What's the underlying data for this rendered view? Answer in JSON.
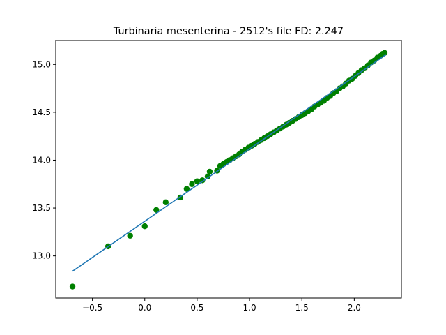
{
  "chart_data": {
    "type": "scatter",
    "title": "Turbinaria mesenterina - 2512's file FD: 2.247",
    "xlabel": "",
    "ylabel": "",
    "xlim": [
      -0.85,
      2.45
    ],
    "ylim": [
      12.56,
      15.25
    ],
    "x_ticks": [
      -0.5,
      0.0,
      0.5,
      1.0,
      1.5,
      2.0
    ],
    "x_tick_labels": [
      "−0.5",
      "0.0",
      "0.5",
      "1.0",
      "1.5",
      "2.0"
    ],
    "y_ticks": [
      13.0,
      13.5,
      14.0,
      14.5,
      15.0
    ],
    "y_tick_labels": [
      "13.0",
      "13.5",
      "14.0",
      "14.5",
      "15.0"
    ],
    "grid": false,
    "series": [
      {
        "kind": "scatter",
        "color": "#008000",
        "points": [
          [
            -0.69,
            12.68
          ],
          [
            -0.35,
            13.1
          ],
          [
            -0.14,
            13.21
          ],
          [
            0.0,
            13.31
          ],
          [
            0.11,
            13.48
          ],
          [
            0.2,
            13.56
          ],
          [
            0.34,
            13.61
          ],
          [
            0.4,
            13.7
          ],
          [
            0.45,
            13.75
          ],
          [
            0.5,
            13.78
          ],
          [
            0.55,
            13.79
          ],
          [
            0.6,
            13.83
          ],
          [
            0.62,
            13.88
          ],
          [
            0.69,
            13.89
          ],
          [
            0.72,
            13.94
          ],
          [
            0.75,
            13.96
          ],
          [
            0.78,
            13.98
          ],
          [
            0.81,
            14.0
          ],
          [
            0.84,
            14.02
          ],
          [
            0.87,
            14.04
          ],
          [
            0.9,
            14.06
          ],
          [
            0.93,
            14.09
          ],
          [
            0.96,
            14.11
          ],
          [
            0.99,
            14.13
          ],
          [
            1.02,
            14.15
          ],
          [
            1.05,
            14.17
          ],
          [
            1.08,
            14.19
          ],
          [
            1.11,
            14.21
          ],
          [
            1.14,
            14.23
          ],
          [
            1.17,
            14.25
          ],
          [
            1.2,
            14.27
          ],
          [
            1.23,
            14.29
          ],
          [
            1.26,
            14.31
          ],
          [
            1.29,
            14.33
          ],
          [
            1.32,
            14.35
          ],
          [
            1.35,
            14.37
          ],
          [
            1.38,
            14.39
          ],
          [
            1.41,
            14.41
          ],
          [
            1.44,
            14.43
          ],
          [
            1.47,
            14.45
          ],
          [
            1.5,
            14.47
          ],
          [
            1.53,
            14.49
          ],
          [
            1.56,
            14.51
          ],
          [
            1.59,
            14.53
          ],
          [
            1.62,
            14.56
          ],
          [
            1.65,
            14.58
          ],
          [
            1.68,
            14.6
          ],
          [
            1.71,
            14.62
          ],
          [
            1.74,
            14.65
          ],
          [
            1.77,
            14.67
          ],
          [
            1.8,
            14.7
          ],
          [
            1.83,
            14.72
          ],
          [
            1.86,
            14.75
          ],
          [
            1.89,
            14.77
          ],
          [
            1.92,
            14.8
          ],
          [
            1.95,
            14.83
          ],
          [
            1.98,
            14.85
          ],
          [
            2.01,
            14.88
          ],
          [
            2.04,
            14.91
          ],
          [
            2.07,
            14.94
          ],
          [
            2.1,
            14.96
          ],
          [
            2.13,
            14.99
          ],
          [
            2.16,
            15.02
          ],
          [
            2.19,
            15.04
          ],
          [
            2.22,
            15.07
          ],
          [
            2.25,
            15.09
          ],
          [
            2.27,
            15.11
          ],
          [
            2.29,
            15.12
          ]
        ]
      },
      {
        "kind": "line",
        "color": "#1f77b4",
        "points": [
          [
            -0.69,
            12.84
          ],
          [
            2.3,
            15.1
          ]
        ]
      }
    ]
  }
}
